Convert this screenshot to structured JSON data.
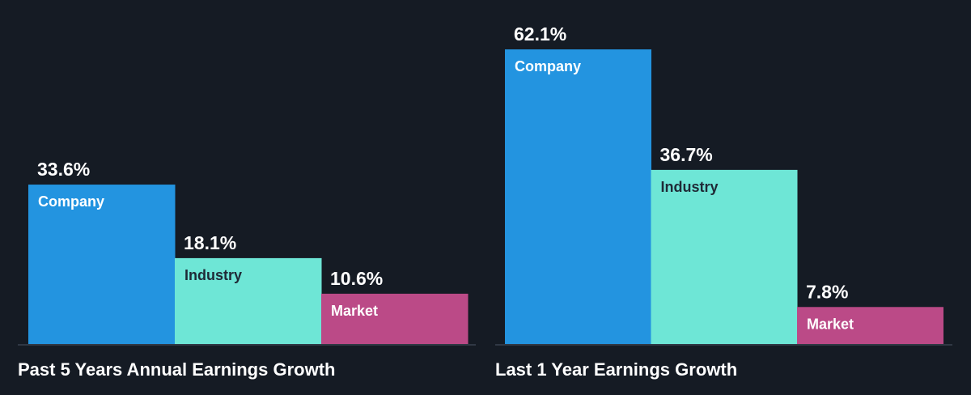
{
  "chart_data": [
    {
      "type": "bar",
      "title": "Past 5 Years Annual Earnings Growth",
      "categories": [
        "Company",
        "Industry",
        "Market"
      ],
      "values": [
        33.6,
        18.1,
        10.6
      ],
      "value_labels": [
        "33.6%",
        "18.1%",
        "10.6%"
      ],
      "colors": [
        "#2394e0",
        "#6ee6d6",
        "#bb4a87"
      ],
      "label_colors": [
        "#ffffff",
        "#1f2a36",
        "#ffffff"
      ],
      "ylim": [
        0,
        62.1
      ]
    },
    {
      "type": "bar",
      "title": "Last 1 Year Earnings Growth",
      "categories": [
        "Company",
        "Industry",
        "Market"
      ],
      "values": [
        62.1,
        36.7,
        7.8
      ],
      "value_labels": [
        "62.1%",
        "36.7%",
        "7.8%"
      ],
      "colors": [
        "#2394e0",
        "#6ee6d6",
        "#bb4a87"
      ],
      "label_colors": [
        "#ffffff",
        "#1f2a36",
        "#ffffff"
      ],
      "ylim": [
        0,
        62.1
      ]
    }
  ]
}
